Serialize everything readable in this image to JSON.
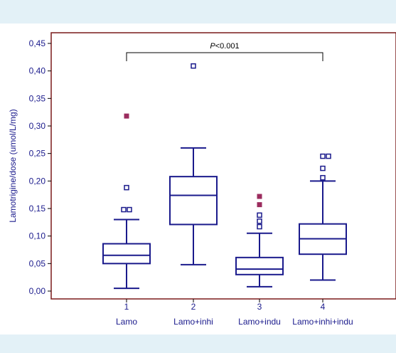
{
  "chart_data": {
    "type": "box",
    "ylabel": "Lamotrigine/dose (umol/L/mg)",
    "ylim": [
      0,
      0.45
    ],
    "yticks": [
      "0,00",
      "0,05",
      "0,10",
      "0,15",
      "0,20",
      "0,25",
      "0,30",
      "0,35",
      "0,40",
      "0,45"
    ],
    "ytick_values": [
      0,
      0.05,
      0.1,
      0.15,
      0.2,
      0.25,
      0.3,
      0.35,
      0.4,
      0.45
    ],
    "categories": [
      {
        "number": "1",
        "label": "Lamo"
      },
      {
        "number": "2",
        "label": "Lamo+inhi"
      },
      {
        "number": "3",
        "label": "Lamo+indu"
      },
      {
        "number": "4",
        "label": "Lamo+inhi+indu"
      }
    ],
    "boxes": [
      {
        "whisker_low": 0.005,
        "q1": 0.05,
        "median": 0.065,
        "q3": 0.086,
        "whisker_high": 0.13,
        "outliers": [
          0.148,
          0.188
        ],
        "far_outliers": [
          0.318
        ],
        "outlier_offsets": [
          0,
          0
        ]
      },
      {
        "whisker_low": 0.048,
        "q1": 0.121,
        "median": 0.174,
        "q3": 0.208,
        "whisker_high": 0.26,
        "outliers": [
          0.409
        ],
        "far_outliers": []
      },
      {
        "whisker_low": 0.008,
        "q1": 0.03,
        "median": 0.04,
        "q3": 0.061,
        "whisker_high": 0.105,
        "outliers": [
          0.117,
          0.127,
          0.138
        ],
        "far_outliers": [
          0.157,
          0.172
        ]
      },
      {
        "whisker_low": 0.02,
        "q1": 0.067,
        "median": 0.095,
        "q3": 0.122,
        "whisker_high": 0.2,
        "outliers": [
          0.206,
          0.223,
          0.245
        ],
        "far_outliers": []
      }
    ],
    "significance": {
      "from": 1,
      "to": 4,
      "label_italic": "P",
      "label_rest": "<0.001"
    },
    "colors": {
      "box": "#1a1a8c",
      "frame": "#7a1a1a",
      "far_outlier": "#9b2c5e",
      "band": "#e3f1f7"
    }
  }
}
